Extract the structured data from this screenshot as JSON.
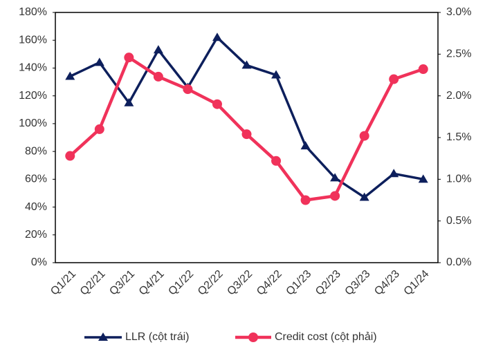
{
  "chart_data": {
    "type": "line",
    "categories": [
      "Q1/21",
      "Q2/21",
      "Q3/21",
      "Q4/21",
      "Q1/22",
      "Q2/22",
      "Q3/22",
      "Q4/22",
      "Q1/23",
      "Q2/23",
      "Q3/23",
      "Q4/23",
      "Q1/24"
    ],
    "series": [
      {
        "name": "LLR (cột trái)",
        "color": "#0d1f5c",
        "marker": "triangle",
        "axis": "y",
        "values": [
          134,
          144,
          115,
          153,
          126,
          162,
          142,
          135,
          84,
          61,
          47,
          64,
          60
        ]
      },
      {
        "name": "Credit cost (cột phải)",
        "color": "#f0325a",
        "marker": "circle",
        "axis": "y2",
        "values": [
          1.28,
          1.6,
          2.46,
          2.23,
          2.08,
          1.9,
          1.54,
          1.22,
          0.75,
          0.8,
          1.52,
          2.2,
          2.32
        ]
      }
    ],
    "ylim": [
      0,
      180
    ],
    "yticks": [
      {
        "value": 0,
        "label": "0%"
      },
      {
        "value": 20,
        "label": "20%"
      },
      {
        "value": 40,
        "label": "40%"
      },
      {
        "value": 60,
        "label": "60%"
      },
      {
        "value": 80,
        "label": "80%"
      },
      {
        "value": 100,
        "label": "100%"
      },
      {
        "value": 120,
        "label": "120%"
      },
      {
        "value": 140,
        "label": "140%"
      },
      {
        "value": 160,
        "label": "160%"
      },
      {
        "value": 180,
        "label": "180%"
      }
    ],
    "y2lim": [
      0,
      3
    ],
    "y2ticks": [
      {
        "value": 0,
        "label": "0.0%"
      },
      {
        "value": 0.5,
        "label": "0.5%"
      },
      {
        "value": 1,
        "label": "1.0%"
      },
      {
        "value": 1.5,
        "label": "1.5%"
      },
      {
        "value": 2,
        "label": "2.0%"
      },
      {
        "value": 2.5,
        "label": "2.5%"
      },
      {
        "value": 3,
        "label": "3.0%"
      }
    ],
    "grid": false,
    "legend": "bottom"
  }
}
